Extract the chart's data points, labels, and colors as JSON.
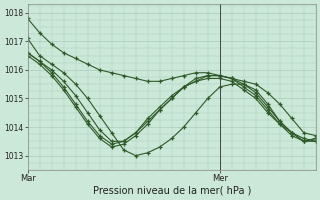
{
  "xlabel": "Pression niveau de la mer( hPa )",
  "ylim": [
    1012.5,
    1018.3
  ],
  "yticks": [
    1013,
    1014,
    1015,
    1016,
    1017,
    1018
  ],
  "xlim": [
    0,
    72
  ],
  "background_color": "#cce8d8",
  "grid_color": "#aaccbb",
  "line_color": "#2d5a27",
  "xtick_positions": [
    0,
    48
  ],
  "xtick_labels": [
    "Mar",
    "Mer"
  ],
  "vline_x": 48,
  "lines": [
    {
      "x": [
        0,
        3,
        6,
        9,
        12,
        15,
        18,
        21,
        24,
        27,
        30,
        33,
        36,
        39,
        42,
        45,
        48,
        51,
        54,
        57,
        60,
        63,
        66,
        69,
        72
      ],
      "y": [
        1017.8,
        1017.3,
        1016.9,
        1016.6,
        1016.4,
        1016.2,
        1016.0,
        1015.9,
        1015.8,
        1015.7,
        1015.6,
        1015.6,
        1015.7,
        1015.8,
        1015.9,
        1015.9,
        1015.8,
        1015.7,
        1015.6,
        1015.5,
        1015.2,
        1014.8,
        1014.3,
        1013.8,
        1013.7
      ]
    },
    {
      "x": [
        0,
        3,
        6,
        9,
        12,
        15,
        18,
        21,
        24,
        27,
        30,
        33,
        36,
        39,
        42,
        45,
        48,
        51,
        54,
        57,
        60,
        63,
        66,
        69,
        72
      ],
      "y": [
        1017.1,
        1016.5,
        1016.2,
        1015.9,
        1015.5,
        1015.0,
        1014.4,
        1013.8,
        1013.2,
        1013.0,
        1013.1,
        1013.3,
        1013.6,
        1014.0,
        1014.5,
        1015.0,
        1015.4,
        1015.5,
        1015.5,
        1015.3,
        1014.8,
        1014.2,
        1013.8,
        1013.5,
        1013.6
      ]
    },
    {
      "x": [
        0,
        3,
        6,
        9,
        12,
        15,
        18,
        21,
        24,
        27,
        30,
        33,
        36,
        39,
        42,
        45,
        48,
        51,
        54,
        57,
        60,
        63,
        66,
        69,
        72
      ],
      "y": [
        1016.6,
        1016.3,
        1016.0,
        1015.6,
        1015.1,
        1014.5,
        1013.9,
        1013.5,
        1013.5,
        1013.8,
        1014.2,
        1014.6,
        1015.0,
        1015.4,
        1015.6,
        1015.8,
        1015.8,
        1015.7,
        1015.5,
        1015.2,
        1014.7,
        1014.2,
        1013.8,
        1013.6,
        1013.5
      ]
    },
    {
      "x": [
        0,
        3,
        6,
        9,
        12,
        15,
        18,
        21,
        24,
        27,
        30,
        33,
        36,
        39,
        42,
        45,
        48,
        51,
        54,
        57,
        60,
        63,
        66,
        69,
        72
      ],
      "y": [
        1016.5,
        1016.2,
        1015.8,
        1015.3,
        1014.7,
        1014.1,
        1013.6,
        1013.3,
        1013.4,
        1013.7,
        1014.1,
        1014.6,
        1015.0,
        1015.4,
        1015.6,
        1015.7,
        1015.7,
        1015.6,
        1015.3,
        1015.0,
        1014.5,
        1014.1,
        1013.7,
        1013.5,
        1013.5
      ]
    },
    {
      "x": [
        0,
        3,
        6,
        9,
        12,
        15,
        18,
        21,
        24,
        27,
        30,
        33,
        36,
        39,
        42,
        45,
        48,
        51,
        54,
        57,
        60,
        63,
        66,
        69,
        72
      ],
      "y": [
        1016.6,
        1016.3,
        1015.9,
        1015.4,
        1014.8,
        1014.2,
        1013.7,
        1013.4,
        1013.5,
        1013.8,
        1014.3,
        1014.7,
        1015.1,
        1015.4,
        1015.7,
        1015.8,
        1015.8,
        1015.7,
        1015.4,
        1015.1,
        1014.6,
        1014.1,
        1013.8,
        1013.5,
        1013.6
      ]
    }
  ]
}
